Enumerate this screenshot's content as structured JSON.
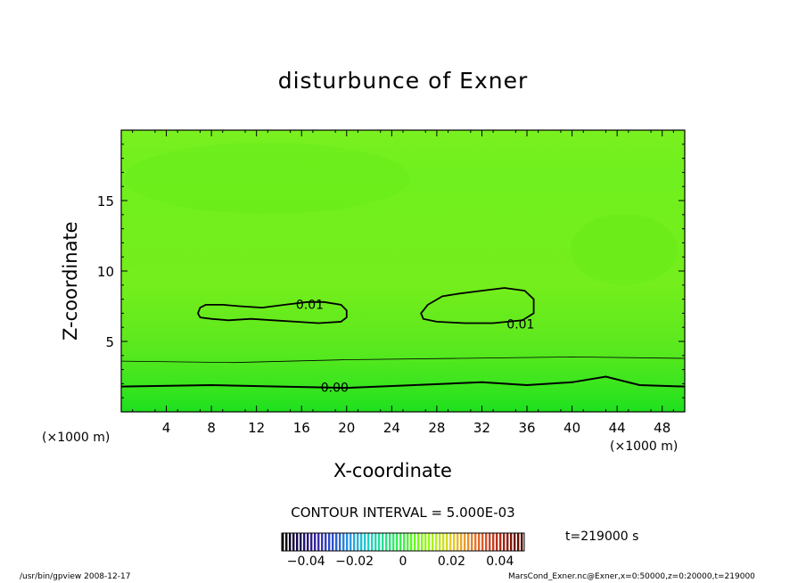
{
  "chart_data": {
    "type": "contour",
    "title": "disturbunce of Exner",
    "xlabel": "X-coordinate",
    "ylabel": "Z-coordinate",
    "x_unit_label": "(×1000 m)",
    "xlim": [
      0,
      50
    ],
    "ylim": [
      0,
      20
    ],
    "x_ticks": [
      4,
      8,
      12,
      16,
      20,
      24,
      28,
      32,
      36,
      40,
      44,
      48
    ],
    "y_ticks": [
      5,
      10,
      15
    ],
    "contour_interval_label": "CONTOUR INTERVAL = 5.000E-03",
    "time_label": "t=219000 s",
    "contours": [
      {
        "level": 0.01,
        "label": "0.01",
        "label_at": [
          15.5,
          7.7
        ],
        "points": [
          [
            6.8,
            7.0
          ],
          [
            7.0,
            7.4
          ],
          [
            7.5,
            7.6
          ],
          [
            9.0,
            7.6
          ],
          [
            10.5,
            7.5
          ],
          [
            12.5,
            7.4
          ],
          [
            14.5,
            7.6
          ],
          [
            16.5,
            7.8
          ],
          [
            18.0,
            7.8
          ],
          [
            19.5,
            7.6
          ],
          [
            20.0,
            7.2
          ],
          [
            20.0,
            6.7
          ],
          [
            19.5,
            6.4
          ],
          [
            17.5,
            6.3
          ],
          [
            15.5,
            6.4
          ],
          [
            13.5,
            6.5
          ],
          [
            11.5,
            6.6
          ],
          [
            9.5,
            6.5
          ],
          [
            8.0,
            6.6
          ],
          [
            7.0,
            6.7
          ],
          [
            6.8,
            7.0
          ]
        ]
      },
      {
        "level": 0.01,
        "label": "0.01",
        "label_at": [
          34.2,
          6.3
        ],
        "points": [
          [
            26.6,
            7.0
          ],
          [
            27.2,
            7.6
          ],
          [
            28.5,
            8.2
          ],
          [
            30.0,
            8.4
          ],
          [
            32.0,
            8.6
          ],
          [
            34.0,
            8.8
          ],
          [
            35.8,
            8.6
          ],
          [
            36.6,
            8.0
          ],
          [
            36.6,
            7.0
          ],
          [
            35.6,
            6.5
          ],
          [
            33.0,
            6.3
          ],
          [
            30.5,
            6.3
          ],
          [
            28.0,
            6.4
          ],
          [
            26.8,
            6.6
          ],
          [
            26.6,
            7.0
          ]
        ]
      }
    ],
    "contour_bands": [
      {
        "level": 0.005,
        "z_at_x": [
          [
            0,
            3.6
          ],
          [
            10,
            3.5
          ],
          [
            20,
            3.7
          ],
          [
            30,
            3.8
          ],
          [
            40,
            3.9
          ],
          [
            50,
            3.8
          ]
        ]
      },
      {
        "level": 0.0,
        "label": "0.00",
        "label_at": [
          17.7,
          1.8
        ],
        "z_at_x": [
          [
            0,
            1.8
          ],
          [
            8,
            1.9
          ],
          [
            14,
            1.8
          ],
          [
            20,
            1.7
          ],
          [
            26,
            1.9
          ],
          [
            32,
            2.1
          ],
          [
            36,
            1.9
          ],
          [
            40,
            2.1
          ],
          [
            43,
            2.5
          ],
          [
            46,
            1.9
          ],
          [
            50,
            1.8
          ]
        ]
      }
    ],
    "colorbar": {
      "range": [
        -0.05,
        0.05
      ],
      "tick_labels": [
        "−0.04",
        "−0.02",
        "0",
        "0.02",
        "0.04"
      ],
      "tick_values": [
        -0.04,
        -0.02,
        0,
        0.02,
        0.04
      ],
      "colors": [
        "#000000",
        "#1a0a5a",
        "#3a28a6",
        "#2a56d4",
        "#2aa0e4",
        "#1ed0c8",
        "#2ae08a",
        "#3cf04a",
        "#7afc10",
        "#b8f020",
        "#e8c828",
        "#e88830",
        "#d84a28",
        "#a02010",
        "#500800"
      ]
    },
    "colors": {
      "field_base": "#6cf21e",
      "field_bottom": "#1ee41e",
      "contour": "#000000"
    }
  },
  "footer": {
    "left": "/usr/bin/gpview   2008-12-17",
    "right": "MarsCond_Exner.nc@Exner,x=0:50000,z=0:20000,t=219000"
  }
}
